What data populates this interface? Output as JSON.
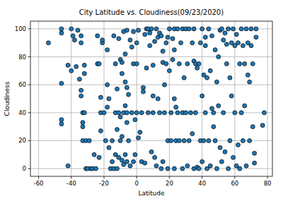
{
  "chart_data": {
    "type": "scatter",
    "title": "City Latitude vs. Cloudiness(09/23/2020)",
    "x_label": "Latitude",
    "y_label": "Cloudiness",
    "color": "#1f77b4",
    "marker": "circle",
    "grid": true,
    "xlim": [
      -65,
      83
    ],
    "ylim": [
      -5.5,
      105.5
    ],
    "xticks": [
      -60,
      -40,
      -20,
      0,
      20,
      40,
      60,
      80
    ],
    "yticks": [
      0,
      20,
      40,
      60,
      80,
      100
    ],
    "x": [
      -54,
      -46,
      -46,
      -46,
      -46,
      -46,
      -42,
      -42,
      -40,
      -40,
      -39,
      -38,
      -37,
      -36,
      -35,
      -34,
      -34,
      -34,
      -34,
      -33,
      -33,
      -33,
      -33,
      -32,
      -32,
      -32,
      -31,
      -31,
      -30,
      -29,
      -28,
      -27,
      -26,
      -25,
      -24,
      -24,
      -23,
      -23,
      -22,
      -22,
      -22,
      -21,
      -21,
      -20,
      -19,
      -18,
      -18,
      -18,
      -17,
      -17,
      -16,
      -15,
      -15,
      -14,
      -14,
      -13,
      -13,
      -13,
      -12,
      -12,
      -12,
      -11,
      -11,
      -11,
      -10,
      -10,
      -10,
      -9,
      -9,
      -9,
      -9,
      -8,
      -8,
      -8,
      -7,
      -7,
      -7,
      -7,
      -6,
      -6,
      -6,
      -6,
      -6,
      -5,
      -5,
      -4,
      -4,
      -3,
      -3,
      -2,
      -2,
      -2,
      -1,
      -1,
      0,
      0,
      0,
      1,
      1,
      2,
      3,
      3,
      4,
      4,
      5,
      5,
      6,
      6,
      7,
      7,
      8,
      8,
      9,
      9,
      10,
      10,
      10,
      11,
      11,
      12,
      12,
      13,
      13,
      14,
      14,
      15,
      15,
      16,
      16,
      16,
      17,
      17,
      18,
      18,
      19,
      19,
      19,
      20,
      20,
      21,
      21,
      22,
      22,
      23,
      23,
      23,
      23,
      24,
      24,
      25,
      25,
      26,
      26,
      27,
      28,
      28,
      28,
      29,
      29,
      30,
      30,
      31,
      31,
      32,
      32,
      33,
      34,
      34,
      35,
      35,
      35,
      36,
      36,
      37,
      37,
      38,
      38,
      39,
      39,
      40,
      40,
      40,
      41,
      41,
      42,
      42,
      42,
      43,
      43,
      44,
      44,
      45,
      45,
      46,
      46,
      47,
      47,
      48,
      48,
      49,
      49,
      50,
      50,
      51,
      51,
      52,
      52,
      53,
      53,
      54,
      54,
      55,
      55,
      56,
      56,
      57,
      57,
      58,
      58,
      59,
      59,
      60,
      60,
      61,
      61,
      62,
      62,
      63,
      63,
      64,
      64,
      65,
      65,
      66,
      66,
      67,
      67,
      68,
      68,
      69,
      69,
      70,
      70,
      71,
      71,
      72,
      72,
      73,
      73,
      77,
      78
    ],
    "values": [
      90,
      61,
      97,
      100,
      35,
      32,
      2,
      74,
      70,
      100,
      95,
      92,
      73,
      99,
      64,
      95,
      90,
      56,
      52,
      40,
      33,
      30,
      20,
      74,
      68,
      40,
      0,
      20,
      0,
      20,
      0,
      0,
      10,
      0,
      95,
      75,
      8,
      75,
      51,
      40,
      27,
      90,
      92,
      40,
      20,
      85,
      60,
      44,
      15,
      50,
      0,
      5,
      20,
      0,
      95,
      75,
      40,
      10,
      57,
      28,
      0,
      8,
      93,
      40,
      37,
      78,
      20,
      76,
      68,
      23,
      6,
      98,
      40,
      3,
      62,
      82,
      10,
      45,
      99,
      58,
      40,
      33,
      5,
      20,
      53,
      92,
      2,
      87,
      40,
      98,
      75,
      5,
      35,
      10,
      90,
      75,
      40,
      99,
      22,
      26,
      5,
      40,
      58,
      55,
      96,
      4,
      72,
      100,
      100,
      40,
      97,
      88,
      100,
      12,
      74,
      52,
      40,
      91,
      8,
      100,
      2,
      50,
      94,
      97,
      40,
      95,
      0,
      76,
      5,
      84,
      60,
      40,
      90,
      75,
      94,
      20,
      0,
      100,
      70,
      40,
      20,
      93,
      78,
      85,
      100,
      50,
      0,
      20,
      44,
      100,
      40,
      75,
      20,
      90,
      100,
      0,
      40,
      65,
      20,
      100,
      40,
      75,
      2,
      100,
      20,
      40,
      90,
      25,
      100,
      77,
      0,
      75,
      40,
      72,
      1,
      75,
      0,
      90,
      20,
      100,
      5,
      52,
      67,
      20,
      94,
      88,
      40,
      65,
      0,
      100,
      20,
      70,
      2,
      95,
      43,
      40,
      30,
      85,
      20,
      62,
      0,
      80,
      45,
      99,
      15,
      100,
      5,
      92,
      40,
      97,
      12,
      89,
      75,
      100,
      0,
      65,
      20,
      90,
      52,
      100,
      8,
      88,
      40,
      96,
      2,
      90,
      17,
      75,
      0,
      100,
      40,
      88,
      20,
      75,
      45,
      100,
      2,
      90,
      67,
      62,
      20,
      100,
      88,
      75,
      30,
      11,
      4,
      94,
      100,
      31,
      40
    ]
  }
}
